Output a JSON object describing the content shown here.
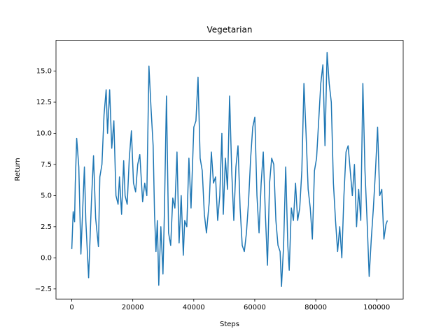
{
  "chart_data": {
    "type": "line",
    "title": "Vegetarian",
    "xlabel": "Steps",
    "ylabel": "Return",
    "x": [
      0,
      460,
      920,
      1150,
      1610,
      2300,
      2990,
      4140,
      4600,
      5520,
      6440,
      7130,
      7820,
      8740,
      9200,
      9890,
      10580,
      11270,
      11730,
      12420,
      13110,
      13800,
      14490,
      15180,
      15640,
      16330,
      17020,
      17480,
      18170,
      18860,
      19550,
      20240,
      20930,
      21620,
      22310,
      23230,
      23920,
      24610,
      25300,
      25990,
      26680,
      27140,
      27600,
      28060,
      28520,
      29210,
      29900,
      30360,
      31050,
      31740,
      32430,
      33120,
      33810,
      34500,
      35190,
      35880,
      36570,
      37030,
      37720,
      38410,
      39100,
      40020,
      40710,
      41400,
      42090,
      42780,
      43470,
      44160,
      45080,
      45770,
      46460,
      47150,
      47840,
      48530,
      49220,
      49680,
      50370,
      51060,
      51750,
      52440,
      53130,
      53820,
      54510,
      55200,
      55890,
      56580,
      57270,
      57960,
      58650,
      59340,
      60030,
      60720,
      61410,
      62100,
      62790,
      63480,
      64170,
      64860,
      65550,
      66240,
      66930,
      67620,
      68310,
      68770,
      69460,
      70150,
      70840,
      71300,
      71990,
      72680,
      73370,
      74060,
      74750,
      75440,
      76130,
      76820,
      77510,
      78200,
      78890,
      79580,
      80270,
      80960,
      81650,
      82340,
      83030,
      83720,
      84410,
      85100,
      85790,
      86480,
      87170,
      87860,
      88550,
      89240,
      89930,
      90620,
      91310,
      92000,
      92690,
      93380,
      94070,
      94760,
      95450,
      96140,
      96830,
      97520,
      98210,
      98900,
      99590,
      100280,
      100970,
      101660,
      102350,
      103040,
      103500
    ],
    "series": [
      {
        "color": "#1f77b4",
        "values": [
          0.7,
          3.7,
          2.9,
          6.0,
          9.6,
          7.3,
          0.3,
          7.3,
          3.0,
          -1.6,
          4.5,
          8.2,
          3.2,
          0.9,
          6.5,
          7.5,
          11.5,
          13.5,
          10.0,
          13.5,
          8.8,
          11.0,
          5.0,
          4.3,
          6.5,
          3.5,
          7.8,
          5.0,
          4.3,
          8.0,
          10.2,
          6.0,
          5.3,
          7.5,
          8.3,
          4.5,
          6.0,
          5.0,
          15.4,
          12.0,
          9.0,
          3.5,
          0.5,
          3.0,
          -2.2,
          2.5,
          -1.3,
          3.5,
          13.0,
          2.0,
          1.0,
          4.8,
          4.0,
          8.5,
          1.2,
          5.0,
          0.2,
          3.0,
          2.5,
          8.0,
          4.0,
          10.5,
          11.0,
          14.5,
          8.0,
          7.0,
          3.5,
          2.0,
          4.5,
          8.5,
          6.0,
          6.5,
          3.0,
          5.0,
          10.0,
          3.5,
          8.0,
          5.5,
          13.0,
          7.0,
          3.0,
          7.3,
          9.0,
          4.0,
          1.0,
          0.5,
          2.0,
          4.5,
          8.0,
          10.5,
          11.3,
          5.0,
          2.0,
          6.0,
          8.5,
          3.5,
          -0.6,
          6.0,
          8.0,
          7.5,
          3.0,
          1.0,
          0.5,
          -2.3,
          1.0,
          7.3,
          1.0,
          -1.0,
          4.0,
          3.0,
          6.0,
          3.0,
          4.0,
          7.0,
          14.0,
          10.0,
          5.5,
          4.0,
          1.5,
          7.0,
          8.0,
          11.0,
          14.0,
          15.5,
          9.0,
          16.5,
          14.0,
          12.5,
          6.0,
          3.0,
          0.5,
          2.5,
          0.0,
          5.0,
          8.5,
          9.0,
          7.0,
          5.0,
          7.5,
          2.5,
          5.5,
          3.0,
          14.0,
          7.0,
          3.0,
          -1.5,
          1.5,
          4.0,
          7.0,
          10.5,
          5.0,
          5.5,
          1.5,
          2.7,
          3.0
        ]
      }
    ],
    "xlim": [
      -5175,
      108675
    ],
    "xticks": [
      0,
      20000,
      40000,
      60000,
      80000,
      100000
    ],
    "ylim": [
      -3.31,
      17.47
    ],
    "yticks": [
      {
        "value": -2.5,
        "label": "−2.5"
      },
      {
        "value": 0,
        "label": "0.0"
      },
      {
        "value": 2.5,
        "label": "2.5"
      },
      {
        "value": 5,
        "label": "5.0"
      },
      {
        "value": 7.5,
        "label": "7.5"
      },
      {
        "value": 10,
        "label": "10.0"
      },
      {
        "value": 12.5,
        "label": "12.5"
      },
      {
        "value": 15,
        "label": "15.0"
      }
    ],
    "grid": false
  }
}
